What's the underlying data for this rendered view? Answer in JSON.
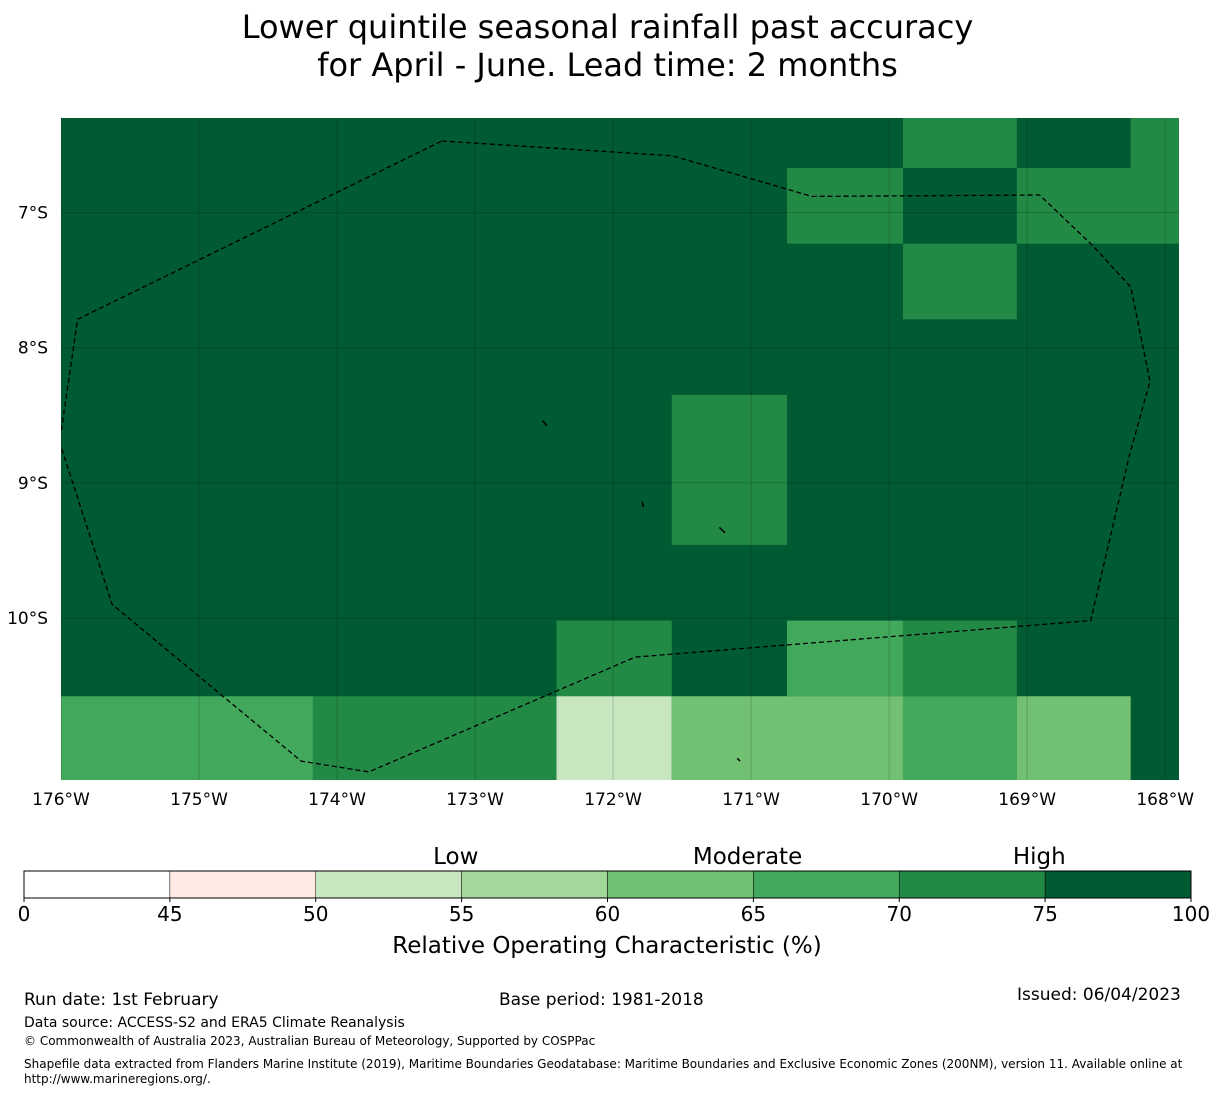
{
  "title": {
    "line1": "Lower quintile seasonal rainfall past accuracy",
    "line2": "for April - June. Lead time: 2 months"
  },
  "map": {
    "lon_range": [
      -176,
      -167.9
    ],
    "lat_range": [
      -11.2,
      -6.3
    ],
    "lat_ticks": [
      {
        "value": -7,
        "label": "7°S"
      },
      {
        "value": -8,
        "label": "8°S"
      },
      {
        "value": -9,
        "label": "9°S"
      },
      {
        "value": -10,
        "label": "10°S"
      }
    ],
    "lon_ticks": [
      {
        "value": -176,
        "label": "176°W"
      },
      {
        "value": -175,
        "label": "175°W"
      },
      {
        "value": -174,
        "label": "174°W"
      },
      {
        "value": -173,
        "label": "173°W"
      },
      {
        "value": -172,
        "label": "172°W"
      },
      {
        "value": -171,
        "label": "171°W"
      },
      {
        "value": -170,
        "label": "170°W"
      },
      {
        "value": -169,
        "label": "169°W"
      },
      {
        "value": -168,
        "label": "168°W"
      }
    ],
    "background_value": 80,
    "cells": [
      {
        "lon0": -169.9,
        "lon1": -169.075,
        "lat0": -6.3,
        "lat1": -6.67,
        "value": 72
      },
      {
        "lon0": -168.25,
        "lon1": -167.9,
        "lat0": -6.3,
        "lat1": -6.67,
        "value": 72
      },
      {
        "lon0": -170.74,
        "lon1": -169.9,
        "lat0": -6.67,
        "lat1": -7.23,
        "value": 72
      },
      {
        "lon0": -169.075,
        "lon1": -167.9,
        "lat0": -6.67,
        "lat1": -7.23,
        "value": 72
      },
      {
        "lon0": -169.9,
        "lon1": -169.075,
        "lat0": -7.23,
        "lat1": -7.79,
        "value": 72
      },
      {
        "lon0": -171.575,
        "lon1": -170.74,
        "lat0": -8.35,
        "lat1": -9.46,
        "value": 72
      },
      {
        "lon0": -172.41,
        "lon1": -171.575,
        "lat0": -10.02,
        "lat1": -10.58,
        "value": 72
      },
      {
        "lon0": -170.74,
        "lon1": -169.9,
        "lat0": -10.02,
        "lat1": -10.58,
        "value": 67
      },
      {
        "lon0": -169.9,
        "lon1": -169.075,
        "lat0": -10.02,
        "lat1": -10.58,
        "value": 72
      },
      {
        "lon0": -176.0,
        "lon1": -174.175,
        "lat0": -10.58,
        "lat1": -11.2,
        "value": 67
      },
      {
        "lon0": -174.175,
        "lon1": -172.41,
        "lat0": -10.58,
        "lat1": -11.2,
        "value": 72
      },
      {
        "lon0": -172.41,
        "lon1": -171.575,
        "lat0": -10.58,
        "lat1": -11.2,
        "value": 52
      },
      {
        "lon0": -171.575,
        "lon1": -169.9,
        "lat0": -10.58,
        "lat1": -11.2,
        "value": 62
      },
      {
        "lon0": -169.9,
        "lon1": -169.075,
        "lat0": -10.58,
        "lat1": -11.2,
        "value": 67
      },
      {
        "lon0": -169.075,
        "lon1": -168.25,
        "lat0": -10.58,
        "lat1": -11.2,
        "value": 62
      }
    ],
    "eez_boundary": [
      [
        -173.24,
        -6.47
      ],
      [
        -171.57,
        -6.58
      ],
      [
        -170.56,
        -6.88
      ],
      [
        -168.91,
        -6.87
      ],
      [
        -168.52,
        -7.25
      ],
      [
        -168.25,
        -7.55
      ],
      [
        -168.11,
        -8.25
      ],
      [
        -168.26,
        -8.8
      ],
      [
        -168.54,
        -10.02
      ],
      [
        -171.84,
        -10.29
      ],
      [
        -173.77,
        -11.14
      ],
      [
        -174.26,
        -11.06
      ],
      [
        -175.63,
        -9.9
      ],
      [
        -176.01,
        -8.7
      ],
      [
        -175.88,
        -7.79
      ],
      [
        -173.24,
        -6.47
      ]
    ],
    "islands": [
      [
        [
          -172.51,
          -8.54
        ],
        [
          -172.48,
          -8.58
        ]
      ],
      [
        [
          -171.79,
          -9.14
        ],
        [
          -171.78,
          -9.18
        ]
      ],
      [
        [
          -171.23,
          -9.33
        ],
        [
          -171.19,
          -9.37
        ]
      ],
      [
        [
          -171.1,
          -11.04
        ],
        [
          -171.08,
          -11.06
        ]
      ]
    ]
  },
  "colorbar": {
    "category_labels": [
      "Low",
      "Moderate",
      "High"
    ],
    "bounds": [
      0,
      45,
      50,
      55,
      60,
      65,
      70,
      75,
      100
    ],
    "colors": [
      "#ffffff",
      "#feeae2",
      "#c8e7c0",
      "#a2d899",
      "#72c172",
      "#42a85c",
      "#238a46",
      "#005a32"
    ],
    "label": "Relative Operating Characteristic (%)"
  },
  "footer": {
    "run_date": "Run date: 1st February",
    "base_period": "Base period: 1981-2018",
    "issued": "Issued: 06/04/2023",
    "data_source": "Data source: ACCESS-S2 and ERA5 Climate Reanalysis",
    "copyright": "© Commonwealth of Australia 2023, Australian Bureau of Meteorology, Supported by COSPPac",
    "shapefile": "Shapefile data extracted from Flanders Marine Institute (2019), Maritime Boundaries Geodatabase: Maritime Boundaries and Exclusive Economic Zones (200NM), version 11. Available online at http://www.marineregions.org/."
  }
}
